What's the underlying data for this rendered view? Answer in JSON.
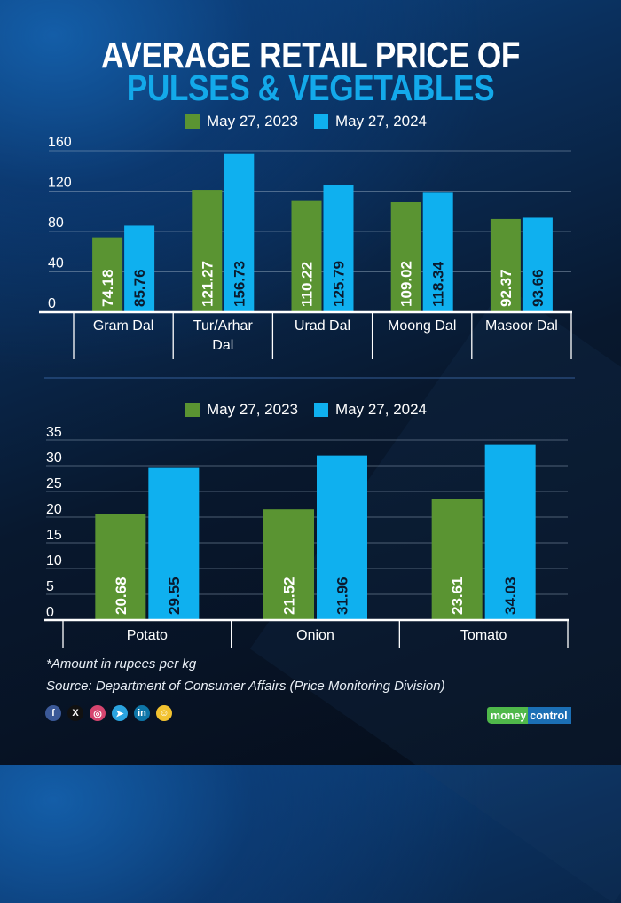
{
  "title": {
    "line1": "AVERAGE RETAIL PRICE OF",
    "line2": "PULSES & VEGETABLES"
  },
  "colors": {
    "series_2023": "#5a9432",
    "series_2024": "#0fb0ef",
    "title_accent": "#13a9ea"
  },
  "chart_data": [
    {
      "type": "bar",
      "title": "Pulses",
      "categories": [
        "Gram Dal",
        "Tur/Arhar Dal",
        "Urad Dal",
        "Moong Dal",
        "Masoor Dal"
      ],
      "category_lines": [
        [
          "Gram Dal"
        ],
        [
          "Tur/Arhar",
          "Dal"
        ],
        [
          "Urad Dal"
        ],
        [
          "Moong Dal"
        ],
        [
          "Masoor Dal"
        ]
      ],
      "series": [
        {
          "name": "May 27, 2023",
          "values": [
            74.18,
            121.27,
            110.22,
            109.02,
            92.37
          ]
        },
        {
          "name": "May 27, 2024",
          "values": [
            85.76,
            156.73,
            125.79,
            118.34,
            93.66
          ]
        }
      ],
      "data_labels": [
        [
          "74.18",
          "121.27",
          "110.22",
          "109.02",
          "92.37"
        ],
        [
          "85.76",
          "156.73",
          "125.79",
          "118.34",
          "93.66"
        ]
      ],
      "yticks": [
        0,
        40,
        80,
        120,
        160
      ],
      "ylim": [
        0,
        160
      ],
      "xlabel": "",
      "ylabel": "",
      "grid": true,
      "legend": "top-center"
    },
    {
      "type": "bar",
      "title": "Vegetables",
      "categories": [
        "Potato",
        "Onion",
        "Tomato"
      ],
      "category_lines": [
        [
          "Potato"
        ],
        [
          "Onion"
        ],
        [
          "Tomato"
        ]
      ],
      "series": [
        {
          "name": "May 27, 2023",
          "values": [
            20.68,
            21.52,
            23.61
          ]
        },
        {
          "name": "May 27, 2024",
          "values": [
            29.55,
            31.96,
            34.03
          ]
        }
      ],
      "data_labels": [
        [
          "20.68",
          "21.52",
          "23.61"
        ],
        [
          "29.55",
          "31.96",
          "34.03"
        ]
      ],
      "yticks": [
        0,
        5,
        10,
        15,
        20,
        25,
        30,
        35
      ],
      "ylim": [
        0,
        35
      ],
      "xlabel": "",
      "ylabel": "",
      "grid": true,
      "legend": "top-center"
    }
  ],
  "legend_top": [
    {
      "label": "May 27, 2023"
    },
    {
      "label": "May 27, 2024"
    }
  ],
  "legend_bottom": [
    {
      "label": "May 27, 2023"
    },
    {
      "label": "May 27, 2024"
    }
  ],
  "footnotes": {
    "unit_note": "*Amount in rupees per kg",
    "source": "Source: Department of Consumer Affairs (Price Monitoring Division)"
  },
  "socials": [
    {
      "icon": "facebook-icon",
      "glyph": "f",
      "color": "#3b5998"
    },
    {
      "icon": "x-icon",
      "glyph": "X",
      "color": "#111111"
    },
    {
      "icon": "instagram-icon",
      "glyph": "◎",
      "color": "#d6456f"
    },
    {
      "icon": "telegram-icon",
      "glyph": "➤",
      "color": "#2aa3df"
    },
    {
      "icon": "linkedin-icon",
      "glyph": "in",
      "color": "#0e76a8"
    },
    {
      "icon": "snapchat-icon",
      "glyph": "☺",
      "color": "#f2c230"
    }
  ],
  "brand": {
    "part1": "money",
    "part2": "control"
  }
}
